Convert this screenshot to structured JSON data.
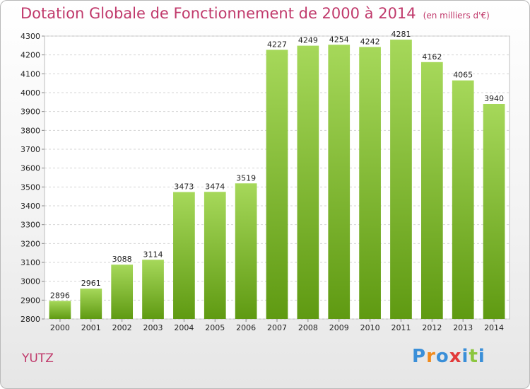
{
  "title": "Dotation Globale de Fonctionnement de 2000 à 2014",
  "subtitle": "(en milliers d'€)",
  "city": "YUTZ",
  "logo": {
    "letters": [
      "P",
      "r",
      "o",
      "x",
      "i",
      "t",
      "i"
    ],
    "colors": [
      "#3a8fd8",
      "#f08a1c",
      "#3a8fd8",
      "#e23a3a",
      "#3a8fd8",
      "#8cc63f",
      "#3a8fd8"
    ]
  },
  "colors": {
    "title": "#c0396b",
    "bar_top": "#a6d85a",
    "bar_bottom": "#5f9a12"
  },
  "chart_data": {
    "type": "bar",
    "title": "Dotation Globale de Fonctionnement de 2000 à 2014",
    "subtitle": "(en milliers d'€)",
    "categories": [
      "2000",
      "2001",
      "2002",
      "2003",
      "2004",
      "2005",
      "2006",
      "2007",
      "2008",
      "2009",
      "2010",
      "2011",
      "2012",
      "2013",
      "2014"
    ],
    "values": [
      2896,
      2961,
      3088,
      3114,
      3473,
      3474,
      3519,
      4227,
      4249,
      4254,
      4242,
      4281,
      4162,
      4065,
      3940
    ],
    "ylim": [
      2800,
      4300
    ],
    "yticks": [
      2800,
      2900,
      3000,
      3100,
      3200,
      3300,
      3400,
      3500,
      3600,
      3700,
      3800,
      3900,
      4000,
      4100,
      4200,
      4300
    ],
    "grid": true,
    "xlabel": "",
    "ylabel": ""
  }
}
